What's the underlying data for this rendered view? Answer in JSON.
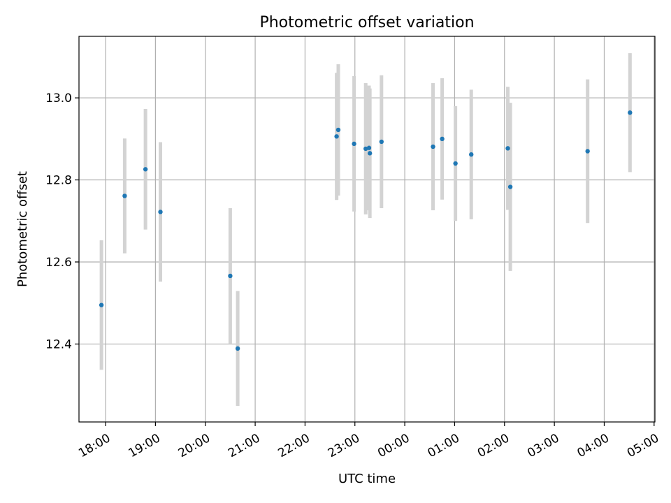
{
  "chart_data": {
    "type": "scatter",
    "title": "Photometric offset variation",
    "xlabel": "UTC time",
    "ylabel": "Photometric offset",
    "x_axis": {
      "kind": "time",
      "ticks": [
        "18:00",
        "19:00",
        "20:00",
        "21:00",
        "22:00",
        "23:00",
        "00:00",
        "01:00",
        "02:00",
        "03:00",
        "04:00",
        "05:00"
      ],
      "range": [
        "17:28",
        "05:01"
      ]
    },
    "ylim": [
      12.21,
      13.15
    ],
    "y_ticks": [
      12.4,
      12.6,
      12.8,
      13.0
    ],
    "grid": true,
    "point_color": "#1f77b4",
    "errorbar_color": "#d3d3d3",
    "series": [
      {
        "points": [
          {
            "t": "17:55",
            "y": 12.495,
            "err": 0.158
          },
          {
            "t": "18:23",
            "y": 12.761,
            "err": 0.14
          },
          {
            "t": "18:48",
            "y": 12.826,
            "err": 0.147
          },
          {
            "t": "19:06",
            "y": 12.722,
            "err": 0.17
          },
          {
            "t": "20:30",
            "y": 12.566,
            "err": 0.165
          },
          {
            "t": "20:39",
            "y": 12.389,
            "err": 0.14
          },
          {
            "t": "22:38",
            "y": 12.906,
            "err": 0.155
          },
          {
            "t": "22:40",
            "y": 12.922,
            "err": 0.16
          },
          {
            "t": "22:59",
            "y": 12.888,
            "err": 0.165
          },
          {
            "t": "23:13",
            "y": 12.876,
            "err": 0.16
          },
          {
            "t": "23:17",
            "y": 12.878,
            "err": 0.152
          },
          {
            "t": "23:18",
            "y": 12.865,
            "err": 0.158
          },
          {
            "t": "23:32",
            "y": 12.893,
            "err": 0.162
          },
          {
            "t": "00:34",
            "y": 12.881,
            "err": 0.155
          },
          {
            "t": "00:45",
            "y": 12.9,
            "err": 0.148
          },
          {
            "t": "01:01",
            "y": 12.84,
            "err": 0.14
          },
          {
            "t": "01:20",
            "y": 12.862,
            "err": 0.158
          },
          {
            "t": "02:04",
            "y": 12.877,
            "err": 0.15
          },
          {
            "t": "02:07",
            "y": 12.783,
            "err": 0.205
          },
          {
            "t": "03:40",
            "y": 12.87,
            "err": 0.175
          },
          {
            "t": "04:31",
            "y": 12.964,
            "err": 0.145
          }
        ]
      }
    ]
  }
}
